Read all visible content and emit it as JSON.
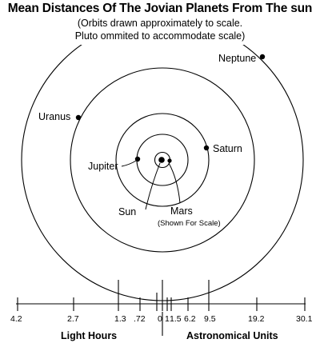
{
  "title": "Mean Distances Of The Jovian Planets From The sun",
  "subtitle": {
    "line1": "(Orbits drawn approximately to scale.",
    "line2": "Pluto ommited to accommodate scale)"
  },
  "bodies": {
    "sun": "Sun",
    "mars": "Mars",
    "mars_note": "(Shown For Scale)",
    "jupiter": "Jupiter",
    "saturn": "Saturn",
    "uranus": "Uranus",
    "neptune": "Neptune"
  },
  "scale": {
    "light_hours_label": "Light Hours",
    "au_label": "Astronomical Units",
    "light_hour_ticks": [
      "4.2",
      "2.7",
      "1.3",
      ".72",
      "0"
    ],
    "au_ticks": [
      "1",
      "1.5",
      "6.2",
      "9.5",
      "19.2",
      "30.1"
    ]
  },
  "colors": {
    "ink": "#000000",
    "background": "#ffffff"
  }
}
